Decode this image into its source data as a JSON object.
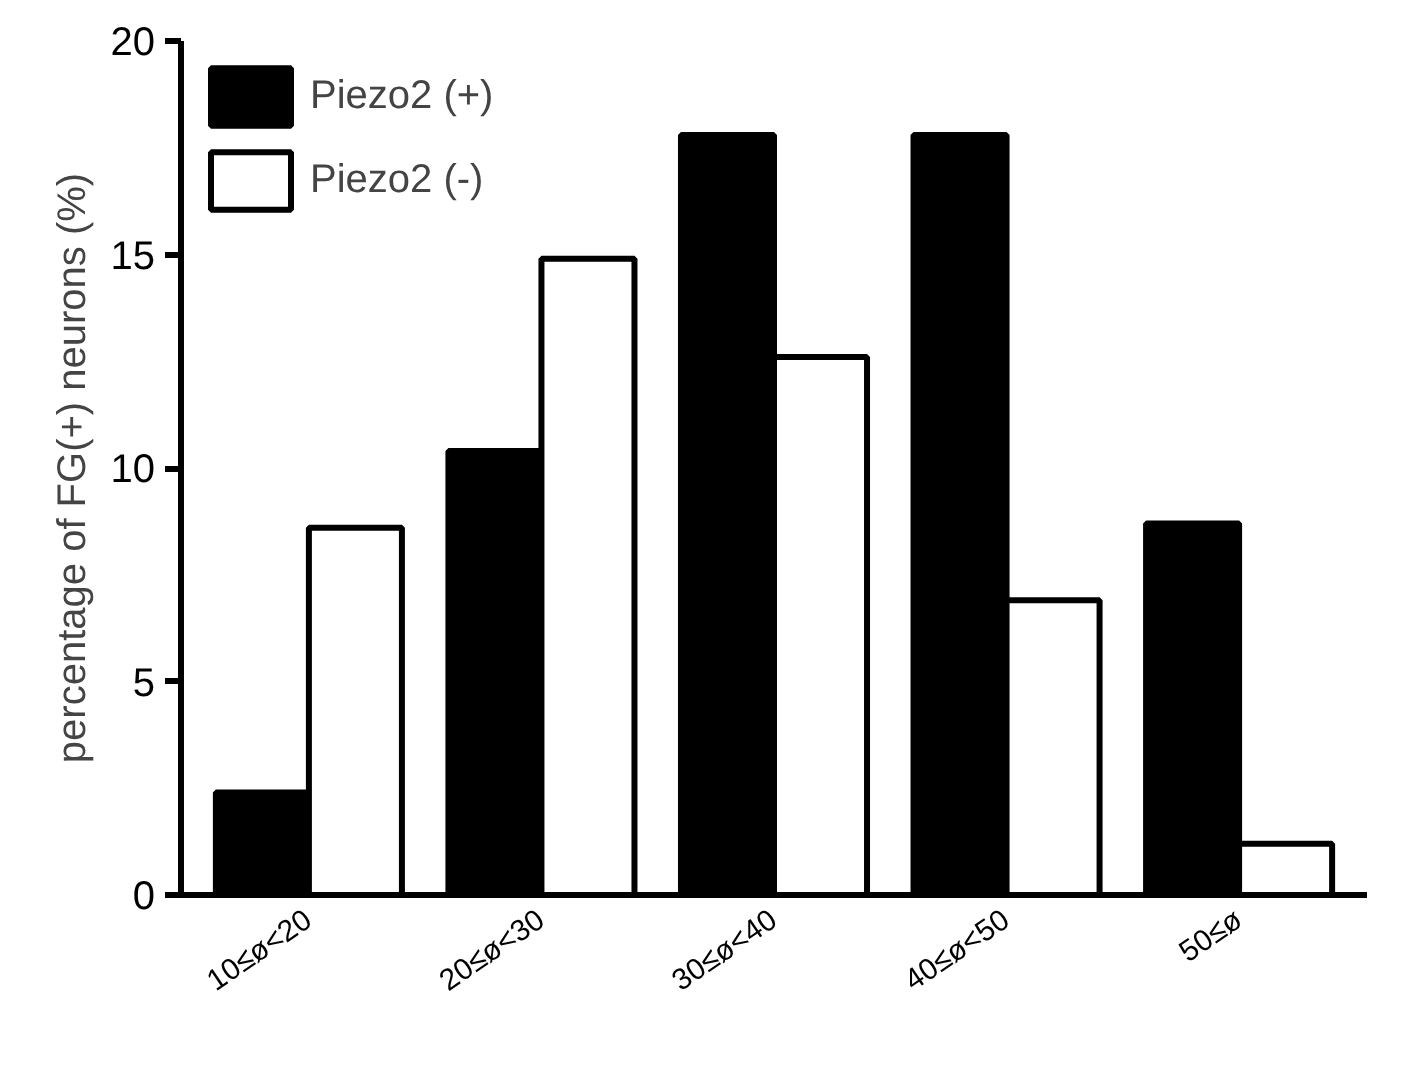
{
  "chart_data": {
    "type": "bar",
    "ylabel": "percentage of FG(+) neurons (%)",
    "categories": [
      "10≤ø<20",
      "20≤ø<30",
      "30≤ø<40",
      "40≤ø<50",
      "50≤ø"
    ],
    "series": [
      {
        "name": "Piezo2 (+)",
        "color": "#000000",
        "values": [
          2.4,
          10.4,
          17.8,
          17.8,
          8.7
        ]
      },
      {
        "name": "Piezo2 (-)",
        "color": "#ffffff",
        "values": [
          8.6,
          14.9,
          12.6,
          6.9,
          1.2
        ]
      }
    ],
    "ylim": [
      0,
      20
    ],
    "yticks": [
      0,
      5,
      10,
      15,
      20
    ],
    "grid": false,
    "legend": "top left"
  }
}
